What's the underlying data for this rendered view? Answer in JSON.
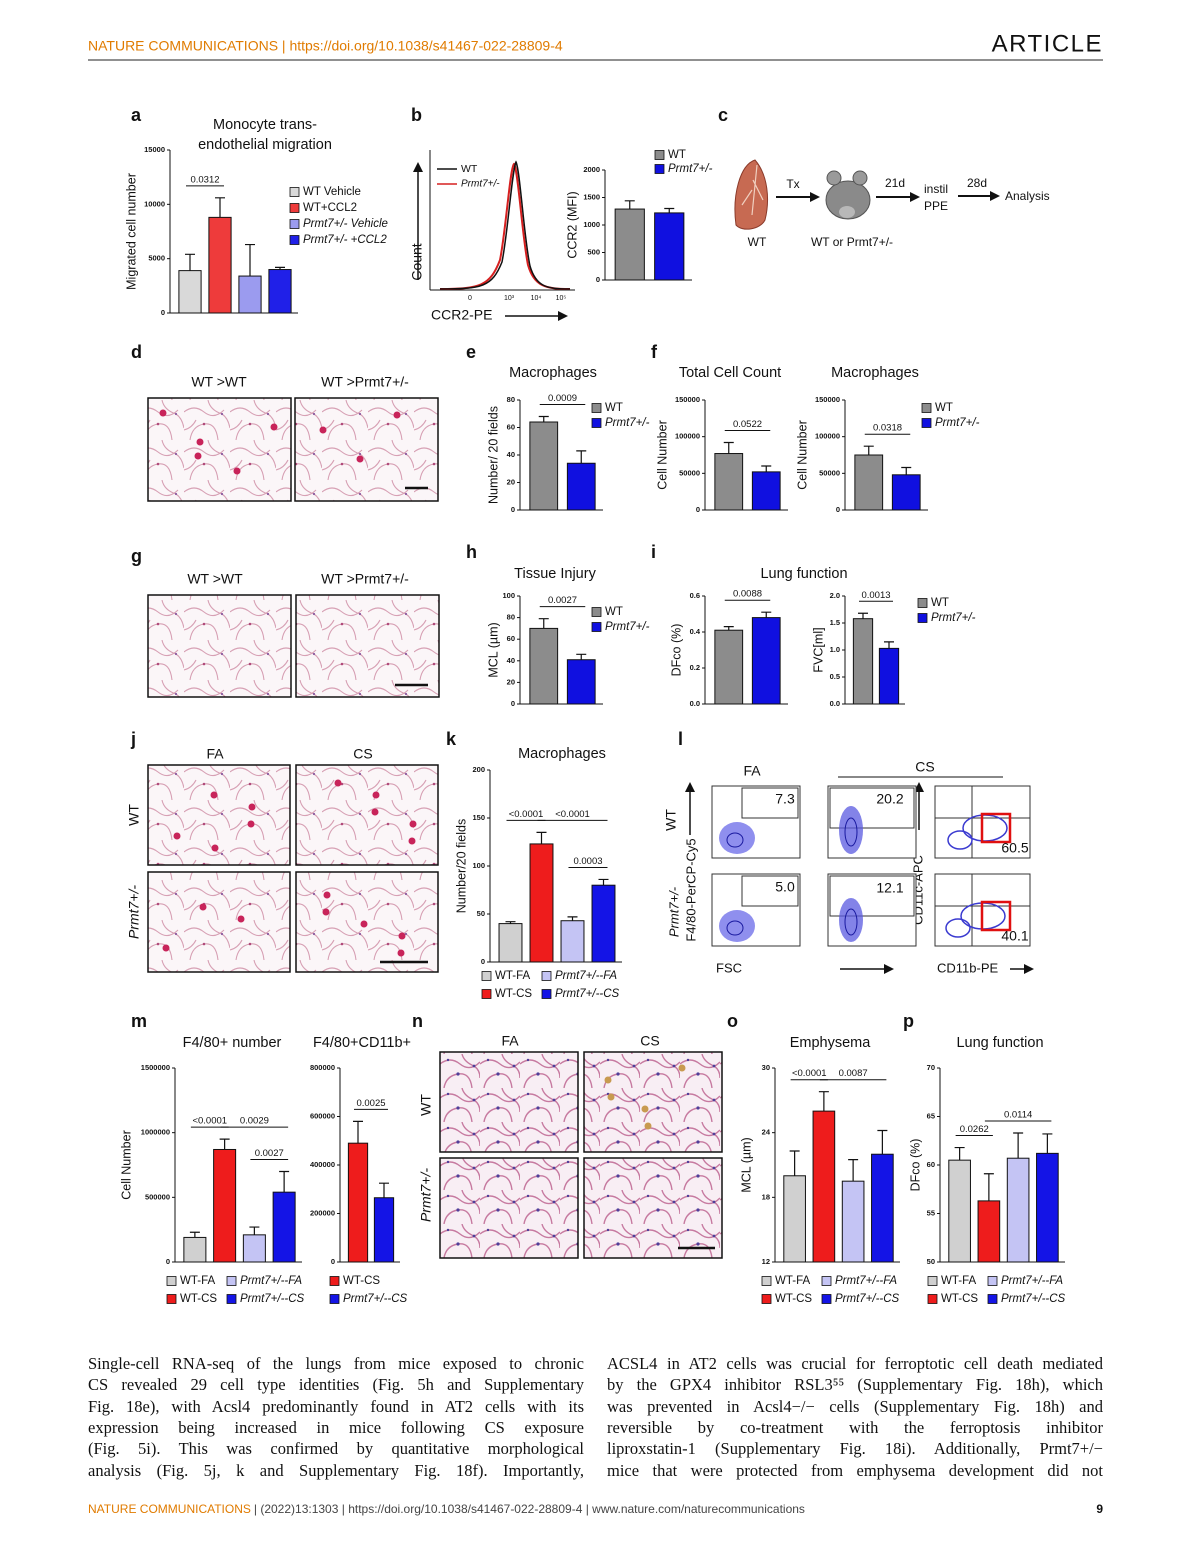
{
  "header": {
    "journal": "NATURE COMMUNICATIONS | https://doi.org/10.1038/s41467-022-28809-4",
    "section": "ARTICLE"
  },
  "letters": [
    "a",
    "b",
    "c",
    "d",
    "e",
    "f",
    "g",
    "h",
    "i",
    "j",
    "k",
    "l",
    "m",
    "n",
    "o",
    "p"
  ],
  "flow_b": {
    "legend": [
      "WT",
      "Prmt7+/-"
    ],
    "ylabel": "Count",
    "xlabel": "CCR2-PE",
    "xticks": [
      "0",
      "10³",
      "10⁴",
      "10⁵"
    ]
  },
  "diagram": {
    "tx": "Tx",
    "d21": "21d",
    "instil": [
      "instil",
      "PPE"
    ],
    "d28": "28d",
    "analysis": "Analysis",
    "wt": "WT",
    "mouse": "WT or Prmt7+/-"
  },
  "histology": {
    "d": {
      "labels": [
        "WT >WT",
        "WT >Prmt7+/-"
      ]
    },
    "g": {
      "labels": [
        "WT >WT",
        "WT >Prmt7+/-"
      ]
    },
    "j": {
      "cols": [
        "FA",
        "CS"
      ],
      "rows": [
        "WT",
        "Prmt7+/-"
      ]
    },
    "n": {
      "cols": [
        "FA",
        "CS"
      ],
      "rows": [
        "WT",
        "Prmt7+/-"
      ]
    }
  },
  "flow_l": {
    "cols": [
      "FA",
      "CS"
    ],
    "rows": [
      "WT",
      "Prmt7+/-"
    ],
    "gates": [
      "7.3",
      "20.2",
      "60.5",
      "5.0",
      "12.1",
      "40.1"
    ],
    "axes": [
      "F4/80-PerCP-Cy5",
      "FSC",
      "CD11c-APC",
      "CD11b-PE"
    ]
  },
  "charts": [
    {
      "type": "bar",
      "title": [
        "Monocyte trans-",
        "endothelial migration"
      ],
      "ylabel": "Migrated cell number",
      "ylim": [
        0,
        15000
      ],
      "yticks": [
        0,
        5000,
        10000,
        15000
      ],
      "values": [
        3900,
        8800,
        3400,
        4000
      ],
      "errors": [
        1500,
        1800,
        2900,
        200
      ],
      "colors": [
        "#d9d9d9",
        "#ee3b3b",
        "#9b9bef",
        "#2020e8"
      ],
      "pvalues": [
        {
          "label": "0.0312",
          "from": 0,
          "to": 1
        }
      ],
      "legend": [
        {
          "name": "WT Vehicle",
          "color": "#d9d9d9"
        },
        {
          "name": "WT+CCL2",
          "color": "#ee3b3b"
        },
        {
          "name": "Prmt7+/- Vehicle",
          "color": "#9b9bef"
        },
        {
          "name": "Prmt7+/- +CCL2",
          "color": "#2020e8"
        }
      ]
    },
    {
      "type": "bar",
      "ylabel": "CCR2 (MFI)",
      "ylim": [
        0,
        2000
      ],
      "yticks": [
        0,
        500,
        1000,
        1500,
        2000
      ],
      "values": [
        1290,
        1220
      ],
      "errors": [
        150,
        80
      ],
      "colors": [
        "#8c8c8c",
        "#1010e0"
      ],
      "pvalues": [],
      "legend": [
        {
          "name": "WT",
          "color": "#8c8c8c"
        },
        {
          "name": "Prmt7+/-",
          "color": "#1010e0"
        }
      ]
    },
    {
      "type": "bar",
      "title": "Macrophages",
      "ylabel": "Number/ 20 fields",
      "ylim": [
        0,
        80
      ],
      "yticks": [
        0,
        20,
        40,
        60,
        80
      ],
      "values": [
        64,
        34
      ],
      "errors": [
        4,
        9
      ],
      "colors": [
        "#8c8c8c",
        "#1010e0"
      ],
      "pvalues": [
        {
          "label": "0.0009",
          "from": 0,
          "to": 1
        }
      ],
      "legend": [
        {
          "name": "WT",
          "color": "#8c8c8c"
        },
        {
          "name": "Prmt7+/-",
          "color": "#1010e0"
        }
      ]
    },
    {
      "type": "bar",
      "title": "Total Cell Count",
      "ylabel": "Cell Number",
      "ylim": [
        0,
        150000
      ],
      "yticks": [
        0,
        50000,
        100000,
        150000
      ],
      "values": [
        77000,
        52000
      ],
      "errors": [
        15000,
        8000
      ],
      "colors": [
        "#8c8c8c",
        "#1010e0"
      ],
      "pvalues": [
        {
          "label": "0.0522",
          "from": 0,
          "to": 1
        }
      ]
    },
    {
      "type": "bar",
      "title": "Macrophages",
      "ylabel": "Cell Number",
      "ylim": [
        0,
        150000
      ],
      "yticks": [
        0,
        50000,
        100000,
        150000
      ],
      "values": [
        75000,
        48000
      ],
      "errors": [
        12000,
        10000
      ],
      "colors": [
        "#8c8c8c",
        "#1010e0"
      ],
      "pvalues": [
        {
          "label": "0.0318",
          "from": 0,
          "to": 1
        }
      ],
      "legend": [
        {
          "name": "WT",
          "color": "#8c8c8c"
        },
        {
          "name": "Prmt7+/-",
          "color": "#1010e0"
        }
      ]
    },
    {
      "type": "bar",
      "title": "Tissue Injury",
      "ylabel": "MCL (µm)",
      "ylim": [
        0,
        100
      ],
      "yticks": [
        0,
        20,
        40,
        60,
        80,
        100
      ],
      "values": [
        70,
        41
      ],
      "errors": [
        9,
        5
      ],
      "colors": [
        "#8c8c8c",
        "#1010e0"
      ],
      "pvalues": [
        {
          "label": "0.0027",
          "from": 0,
          "to": 1
        }
      ],
      "legend": [
        {
          "name": "WT",
          "color": "#8c8c8c"
        },
        {
          "name": "Prmt7+/-",
          "color": "#1010e0"
        }
      ]
    },
    {
      "type": "bar",
      "title": "Lung function",
      "ylabel": "DFco (%)",
      "ylim": [
        0,
        0.6
      ],
      "yticks": [
        {
          "value": 0,
          "label": "0.0"
        },
        0.2,
        0.4,
        0.6
      ],
      "values": [
        0.41,
        0.48
      ],
      "errors": [
        0.02,
        0.03
      ],
      "colors": [
        "#8c8c8c",
        "#1010e0"
      ],
      "pvalues": [
        {
          "label": "0.0088",
          "from": 0,
          "to": 1
        }
      ]
    },
    {
      "type": "bar",
      "ylabel": "FVC[ml]",
      "ylim": [
        0,
        2
      ],
      "yticks": [
        {
          "value": 0,
          "label": "0.0"
        },
        0.5,
        {
          "value": 1,
          "label": "1.0"
        },
        1.5,
        {
          "value": 2,
          "label": "2.0"
        }
      ],
      "values": [
        1.58,
        1.03
      ],
      "errors": [
        0.1,
        0.12
      ],
      "colors": [
        "#8c8c8c",
        "#1010e0"
      ],
      "pvalues": [
        {
          "label": "0.0013",
          "from": 0,
          "to": 1
        }
      ],
      "legend": [
        {
          "name": "WT",
          "color": "#8c8c8c"
        },
        {
          "name": "Prmt7+/-",
          "color": "#1010e0"
        }
      ]
    },
    {
      "type": "bar",
      "title": "Macrophages",
      "ylabel": "Number/20 fields",
      "ylim": [
        0,
        200
      ],
      "yticks": [
        0,
        50,
        100,
        150,
        200
      ],
      "values": [
        40,
        123,
        43,
        80
      ],
      "errors": [
        2,
        12,
        4,
        6
      ],
      "colors": [
        "#d0d0d0",
        "#ee1c1c",
        "#c4c4f4",
        "#1414e6"
      ],
      "pvalues": [
        {
          "label": "<0.0001",
          "from": 0,
          "to": 1
        },
        {
          "label": "<0.0001",
          "from": 1,
          "to": 3
        },
        {
          "label": "0.0003",
          "from": 2,
          "to": 3
        }
      ],
      "legend": [
        {
          "name": "WT-FA",
          "color": "#d0d0d0"
        },
        {
          "name": "Prmt7+/--FA",
          "color": "#c4c4f4"
        },
        {
          "name": "WT-CS",
          "color": "#ee1c1c"
        },
        {
          "name": "Prmt7+/--CS",
          "color": "#1414e6"
        }
      ]
    },
    {
      "type": "bar",
      "title": "F4/80+ number",
      "ylabel": "Cell Number",
      "ylim": [
        0,
        1500000
      ],
      "yticks": [
        0,
        500000,
        1000000,
        1500000
      ],
      "values": [
        190000,
        870000,
        210000,
        540000
      ],
      "errors": [
        40000,
        80000,
        60000,
        160000
      ],
      "colors": [
        "#d0d0d0",
        "#ee1c1c",
        "#c4c4f4",
        "#1414e6"
      ],
      "pvalues": [
        {
          "label": "<0.0001",
          "from": 0,
          "to": 1
        },
        {
          "label": "0.0029",
          "from": 1,
          "to": 3
        },
        {
          "label": "0.0027",
          "from": 2,
          "to": 3
        }
      ],
      "legend": [
        {
          "name": "WT-FA",
          "color": "#d0d0d0"
        },
        {
          "name": "Prmt7+/--FA",
          "color": "#c4c4f4"
        },
        {
          "name": "WT-CS",
          "color": "#ee1c1c"
        },
        {
          "name": "Prmt7+/--CS",
          "color": "#1414e6"
        }
      ]
    },
    {
      "type": "bar",
      "title": "F4/80+CD11b+",
      "ylim": [
        0,
        800000
      ],
      "yticks": [
        0,
        200000,
        400000,
        600000,
        800000
      ],
      "values": [
        490000,
        265000
      ],
      "errors": [
        90000,
        60000
      ],
      "colors": [
        "#ee1c1c",
        "#1414e6"
      ],
      "pvalues": [
        {
          "label": "0.0025",
          "from": 0,
          "to": 1
        }
      ],
      "legend": [
        {
          "name": "WT-CS",
          "color": "#ee1c1c"
        },
        {
          "name": "Prmt7+/--CS",
          "color": "#1414e6"
        }
      ]
    },
    {
      "type": "bar",
      "title": "Emphysema",
      "ylabel": "MCL (µm)",
      "ylim": [
        12,
        30
      ],
      "yticks": [
        12,
        18,
        24,
        30
      ],
      "values": [
        20,
        26,
        19.5,
        22
      ],
      "errors": [
        2.3,
        1.8,
        2,
        2.2
      ],
      "colors": [
        "#d0d0d0",
        "#ee1c1c",
        "#c4c4f4",
        "#1414e6"
      ],
      "pvalues": [
        {
          "label": "<0.0001",
          "from": 0,
          "to": 1
        },
        {
          "label": "0.0087",
          "from": 1,
          "to": 3
        }
      ],
      "legend": [
        {
          "name": "WT-FA",
          "color": "#d0d0d0"
        },
        {
          "name": "Prmt7+/--FA",
          "color": "#c4c4f4"
        },
        {
          "name": "WT-CS",
          "color": "#ee1c1c"
        },
        {
          "name": "Prmt7+/--CS",
          "color": "#1414e6"
        }
      ]
    },
    {
      "type": "bar",
      "title": "Lung function",
      "ylabel": "DFco (%)",
      "ylim": [
        50,
        70
      ],
      "yticks": [
        50,
        55,
        60,
        65,
        70
      ],
      "values": [
        60.5,
        56.3,
        60.7,
        61.2
      ],
      "errors": [
        1.3,
        2.8,
        2.6,
        2
      ],
      "colors": [
        "#d0d0d0",
        "#ee1c1c",
        "#c4c4f4",
        "#1414e6"
      ],
      "pvalues": [
        {
          "label": "0.0262",
          "from": 0,
          "to": 1
        },
        {
          "label": "0.0114",
          "from": 1,
          "to": 3
        }
      ],
      "legend": [
        {
          "name": "WT-FA",
          "color": "#d0d0d0"
        },
        {
          "name": "Prmt7+/--FA",
          "color": "#c4c4f4"
        },
        {
          "name": "WT-CS",
          "color": "#ee1c1c"
        },
        {
          "name": "Prmt7+/--CS",
          "color": "#1414e6"
        }
      ]
    }
  ],
  "body": {
    "left": [
      "Single-cell RNA-seq of the lungs from mice exposed to chronic",
      "CS revealed 29 cell type identities (Fig. 5h and Supplementary",
      "Fig. 18e), with Acsl4 predominantly found in AT2 cells with its",
      "expression being increased in mice following CS exposure",
      "(Fig. 5i). This was confirmed by quantitative morphological",
      "analysis (Fig. 5j, k and Supplementary Fig. 18f). Importantly,"
    ],
    "right": [
      "ACSL4 in AT2 cells was crucial for ferroptotic cell death mediated",
      "by the GPX4 inhibitor RSL3⁵⁵ (Supplementary Fig. 18h), which",
      "was prevented in Acsl4−/− cells (Supplementary Fig. 18h) and",
      "reversible by co-treatment with the ferroptosis inhibitor",
      "liproxstatin-1 (Supplementary Fig. 18i). Additionally, Prmt7+/−",
      "mice that were protected from emphysema development did not"
    ]
  },
  "footer": {
    "journal": "NATURE COMMUNICATIONS",
    "citation": "| (2022)13:1303 | https://doi.org/10.1038/s41467-022-28809-4 | www.nature.com/naturecommunications",
    "page": "9"
  }
}
